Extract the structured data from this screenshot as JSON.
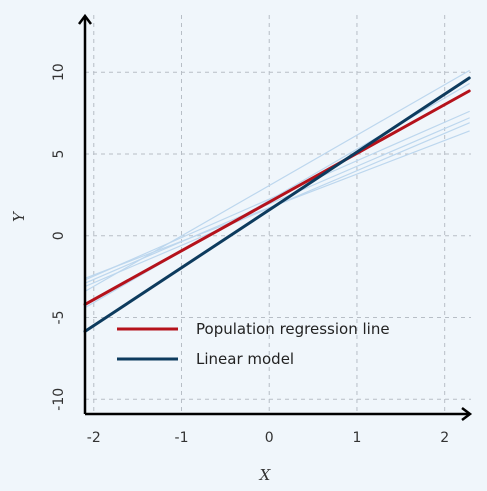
{
  "chart_data": {
    "type": "line",
    "xlabel": "X",
    "ylabel": "Y",
    "xlim": [
      -2.1,
      2.3
    ],
    "ylim": [
      -10.9,
      13.5
    ],
    "grid": true,
    "x_ticks": [
      -2,
      -1,
      0,
      1,
      2
    ],
    "y_ticks": [
      -10,
      -5,
      0,
      5,
      10
    ],
    "x_tick_labels": [
      "-2",
      "-1",
      "0",
      "1",
      "2"
    ],
    "y_tick_labels": [
      "-10",
      "-5",
      "0",
      "5",
      "10"
    ],
    "legend_position": "lower-center",
    "series": [
      {
        "name": "Population regression line",
        "color": "#b5121b",
        "style": "thick",
        "x": [
          -2.1,
          2.28
        ],
        "y": [
          -4.2,
          8.85
        ]
      },
      {
        "name": "Linear model",
        "color": "#0d3b5e",
        "style": "thick",
        "x": [
          -2.1,
          2.28
        ],
        "y": [
          -5.85,
          9.65
        ]
      },
      {
        "color": "#bdd7ee",
        "style": "thin",
        "x": [
          -2.1,
          2.28
        ],
        "y": [
          -3.4,
          10.1
        ]
      },
      {
        "color": "#bdd7ee",
        "style": "thin",
        "x": [
          -2.1,
          2.28
        ],
        "y": [
          -2.7,
          7.6
        ]
      },
      {
        "color": "#bdd7ee",
        "style": "thin",
        "x": [
          -2.1,
          2.28
        ],
        "y": [
          -2.9,
          7.2
        ]
      },
      {
        "color": "#bdd7ee",
        "style": "thin",
        "x": [
          -2.1,
          2.28
        ],
        "y": [
          -3.1,
          6.9
        ]
      },
      {
        "color": "#bdd7ee",
        "style": "thin",
        "x": [
          -2.1,
          2.28
        ],
        "y": [
          -2.6,
          6.4
        ]
      },
      {
        "color": "#bdd7ee",
        "style": "thin",
        "x": [
          -2.1,
          2.28
        ],
        "y": [
          -4.4,
          9.3
        ]
      }
    ]
  }
}
